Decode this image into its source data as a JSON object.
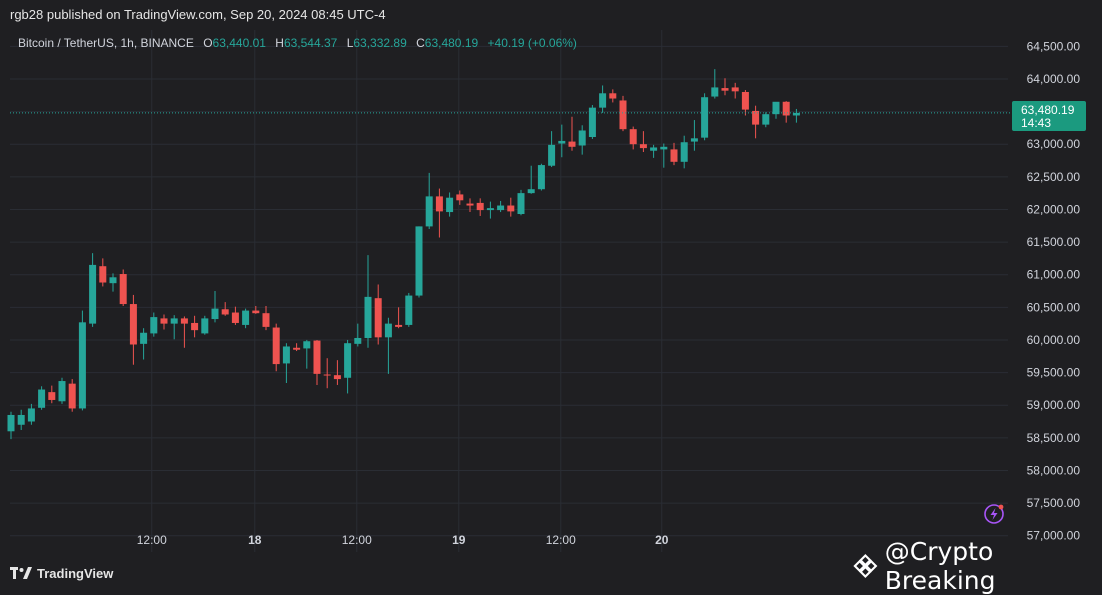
{
  "header": {
    "published_text": "rgb28 published on TradingView.com, Sep 20, 2024 08:45 UTC-4"
  },
  "legend": {
    "symbol": "Bitcoin / TetherUS, 1h, BINANCE",
    "open_label": "O",
    "open": "63,440.01",
    "high_label": "H",
    "high": "63,544.37",
    "low_label": "L",
    "low": "63,332.89",
    "close_label": "C",
    "close": "63,480.19",
    "change": "+40.19 (+0.06%)"
  },
  "price_tag": {
    "price": "63,480.19",
    "countdown": "14:43"
  },
  "footer": {
    "brand": "TradingView",
    "watermark": "@Crypto Breaking"
  },
  "colors": {
    "up": "#26a69a",
    "down": "#ef5350",
    "grid": "#2a2d34",
    "axis_text": "#d1d4dc",
    "price_line": "#26a69a",
    "price_tag": "#1b9a7f",
    "alert": "#a855f7"
  },
  "chart_data": {
    "type": "candlestick",
    "title": "Bitcoin / TetherUS, 1h, BINANCE",
    "ylim": [
      56750,
      64750
    ],
    "y_ticks": [
      57000,
      57500,
      58000,
      58500,
      59000,
      59500,
      60000,
      60500,
      61000,
      61500,
      62000,
      62500,
      63000,
      63500,
      64000,
      64500
    ],
    "y_tick_labels": [
      "57,000.00",
      "57,500.00",
      "58,000.00",
      "58,500.00",
      "59,000.00",
      "59,500.00",
      "60,000.00",
      "60,500.00",
      "61,000.00",
      "61,500.00",
      "62,000.00",
      "62,500.00",
      "63,000.00",
      "63,500.00",
      "64,000.00",
      "64,500.00"
    ],
    "x_ticks": [
      {
        "label": "12:00",
        "index": 13.8
      },
      {
        "label": "18",
        "index": 23.9
      },
      {
        "label": "12:00",
        "index": 33.9
      },
      {
        "label": "19",
        "index": 43.9
      },
      {
        "label": "12:00",
        "index": 53.9
      },
      {
        "label": "20",
        "index": 63.8
      }
    ],
    "last_price": 63480.19,
    "candles": [
      {
        "o": 58600,
        "h": 58900,
        "l": 58480,
        "c": 58850
      },
      {
        "o": 58700,
        "h": 58930,
        "l": 58620,
        "c": 58850
      },
      {
        "o": 58750,
        "h": 59020,
        "l": 58700,
        "c": 58950
      },
      {
        "o": 58960,
        "h": 59290,
        "l": 58930,
        "c": 59240
      },
      {
        "o": 59200,
        "h": 59300,
        "l": 59030,
        "c": 59080
      },
      {
        "o": 59060,
        "h": 59420,
        "l": 59020,
        "c": 59370
      },
      {
        "o": 59330,
        "h": 59400,
        "l": 58900,
        "c": 58950
      },
      {
        "o": 58950,
        "h": 60450,
        "l": 58920,
        "c": 60270
      },
      {
        "o": 60250,
        "h": 61330,
        "l": 60200,
        "c": 61150
      },
      {
        "o": 61130,
        "h": 61250,
        "l": 60820,
        "c": 60880
      },
      {
        "o": 60870,
        "h": 61020,
        "l": 60740,
        "c": 60960
      },
      {
        "o": 61010,
        "h": 61080,
        "l": 60520,
        "c": 60550
      },
      {
        "o": 60550,
        "h": 60690,
        "l": 59620,
        "c": 59930
      },
      {
        "o": 59940,
        "h": 60180,
        "l": 59700,
        "c": 60110
      },
      {
        "o": 60100,
        "h": 60420,
        "l": 60050,
        "c": 60350
      },
      {
        "o": 60330,
        "h": 60390,
        "l": 60160,
        "c": 60250
      },
      {
        "o": 60250,
        "h": 60380,
        "l": 60010,
        "c": 60330
      },
      {
        "o": 60330,
        "h": 60360,
        "l": 59880,
        "c": 60250
      },
      {
        "o": 60260,
        "h": 60370,
        "l": 60040,
        "c": 60150
      },
      {
        "o": 60100,
        "h": 60370,
        "l": 60080,
        "c": 60330
      },
      {
        "o": 60320,
        "h": 60750,
        "l": 60270,
        "c": 60480
      },
      {
        "o": 60470,
        "h": 60580,
        "l": 60370,
        "c": 60390
      },
      {
        "o": 60420,
        "h": 60510,
        "l": 60230,
        "c": 60260
      },
      {
        "o": 60230,
        "h": 60480,
        "l": 60180,
        "c": 60450
      },
      {
        "o": 60450,
        "h": 60520,
        "l": 60400,
        "c": 60410
      },
      {
        "o": 60410,
        "h": 60520,
        "l": 60150,
        "c": 60200
      },
      {
        "o": 60190,
        "h": 60250,
        "l": 59520,
        "c": 59630
      },
      {
        "o": 59640,
        "h": 59950,
        "l": 59340,
        "c": 59900
      },
      {
        "o": 59880,
        "h": 59950,
        "l": 59830,
        "c": 59850
      },
      {
        "o": 59870,
        "h": 60000,
        "l": 59560,
        "c": 59980
      },
      {
        "o": 59990,
        "h": 60000,
        "l": 59310,
        "c": 59480
      },
      {
        "o": 59470,
        "h": 59720,
        "l": 59260,
        "c": 59460
      },
      {
        "o": 59460,
        "h": 59690,
        "l": 59310,
        "c": 59400
      },
      {
        "o": 59420,
        "h": 60000,
        "l": 59180,
        "c": 59950
      },
      {
        "o": 59940,
        "h": 60250,
        "l": 59900,
        "c": 60030
      },
      {
        "o": 60030,
        "h": 61300,
        "l": 59880,
        "c": 60660
      },
      {
        "o": 60640,
        "h": 60850,
        "l": 59930,
        "c": 60040
      },
      {
        "o": 60040,
        "h": 60340,
        "l": 59480,
        "c": 60250
      },
      {
        "o": 60230,
        "h": 60500,
        "l": 60180,
        "c": 60200
      },
      {
        "o": 60230,
        "h": 60720,
        "l": 60200,
        "c": 60680
      },
      {
        "o": 60680,
        "h": 61740,
        "l": 60650,
        "c": 61740
      },
      {
        "o": 61740,
        "h": 62560,
        "l": 61700,
        "c": 62200
      },
      {
        "o": 62200,
        "h": 62320,
        "l": 61570,
        "c": 61970
      },
      {
        "o": 61960,
        "h": 62260,
        "l": 61890,
        "c": 62180
      },
      {
        "o": 62230,
        "h": 62290,
        "l": 62070,
        "c": 62140
      },
      {
        "o": 62090,
        "h": 62170,
        "l": 61960,
        "c": 62060
      },
      {
        "o": 62100,
        "h": 62170,
        "l": 61900,
        "c": 61990
      },
      {
        "o": 61990,
        "h": 62120,
        "l": 61860,
        "c": 62020
      },
      {
        "o": 61990,
        "h": 62130,
        "l": 61960,
        "c": 62060
      },
      {
        "o": 62060,
        "h": 62180,
        "l": 61890,
        "c": 61970
      },
      {
        "o": 61930,
        "h": 62300,
        "l": 61910,
        "c": 62250
      },
      {
        "o": 62250,
        "h": 62670,
        "l": 62240,
        "c": 62310
      },
      {
        "o": 62310,
        "h": 62700,
        "l": 62290,
        "c": 62680
      },
      {
        "o": 62670,
        "h": 63200,
        "l": 62650,
        "c": 62990
      },
      {
        "o": 63010,
        "h": 63300,
        "l": 62800,
        "c": 63050
      },
      {
        "o": 63040,
        "h": 63420,
        "l": 62900,
        "c": 62960
      },
      {
        "o": 62980,
        "h": 63290,
        "l": 62840,
        "c": 63210
      },
      {
        "o": 63110,
        "h": 63600,
        "l": 63080,
        "c": 63560
      },
      {
        "o": 63560,
        "h": 63900,
        "l": 63480,
        "c": 63780
      },
      {
        "o": 63780,
        "h": 63840,
        "l": 63640,
        "c": 63700
      },
      {
        "o": 63670,
        "h": 63740,
        "l": 63200,
        "c": 63230
      },
      {
        "o": 63230,
        "h": 63270,
        "l": 62920,
        "c": 63000
      },
      {
        "o": 63000,
        "h": 63200,
        "l": 62880,
        "c": 62940
      },
      {
        "o": 62900,
        "h": 62990,
        "l": 62790,
        "c": 62950
      },
      {
        "o": 62920,
        "h": 63010,
        "l": 62640,
        "c": 62960
      },
      {
        "o": 62920,
        "h": 63020,
        "l": 62680,
        "c": 62730
      },
      {
        "o": 62730,
        "h": 63130,
        "l": 62630,
        "c": 63030
      },
      {
        "o": 63040,
        "h": 63370,
        "l": 62900,
        "c": 63090
      },
      {
        "o": 63100,
        "h": 63780,
        "l": 63060,
        "c": 63720
      },
      {
        "o": 63730,
        "h": 64150,
        "l": 63700,
        "c": 63870
      },
      {
        "o": 63860,
        "h": 64010,
        "l": 63750,
        "c": 63820
      },
      {
        "o": 63870,
        "h": 63940,
        "l": 63700,
        "c": 63810
      },
      {
        "o": 63800,
        "h": 63830,
        "l": 63440,
        "c": 63530
      },
      {
        "o": 63510,
        "h": 63590,
        "l": 63090,
        "c": 63300
      },
      {
        "o": 63300,
        "h": 63490,
        "l": 63260,
        "c": 63460
      },
      {
        "o": 63460,
        "h": 63640,
        "l": 63390,
        "c": 63650
      },
      {
        "o": 63650,
        "h": 63660,
        "l": 63330,
        "c": 63440
      },
      {
        "o": 63440,
        "h": 63540,
        "l": 63330,
        "c": 63480
      }
    ]
  }
}
